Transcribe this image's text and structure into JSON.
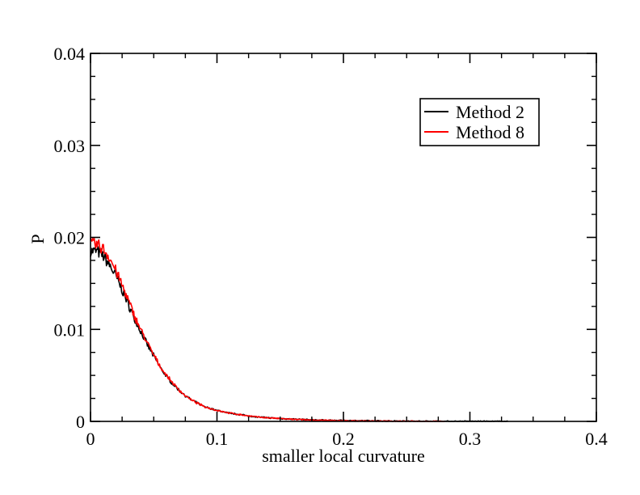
{
  "chart_data": {
    "type": "line",
    "title": "",
    "xlabel": "smaller local curvature",
    "ylabel": "P",
    "xlim": [
      0,
      0.4
    ],
    "ylim": [
      0,
      0.04
    ],
    "xticks": [
      0,
      0.1,
      0.2,
      0.3,
      0.4
    ],
    "xtick_labels": [
      "0",
      "0.1",
      "0.2",
      "0.3",
      "0.4"
    ],
    "yticks": [
      0,
      0.01,
      0.02,
      0.03,
      0.04
    ],
    "ytick_labels": [
      "0",
      "0.01",
      "0.02",
      "0.03",
      "0.04"
    ],
    "grid": false,
    "legend_position": "top-right",
    "series": [
      {
        "name": "Method 2",
        "color": "#000000",
        "x": [
          0,
          0.005,
          0.01,
          0.015,
          0.02,
          0.025,
          0.03,
          0.035,
          0.04,
          0.045,
          0.05,
          0.055,
          0.06,
          0.065,
          0.07,
          0.075,
          0.08,
          0.09,
          0.1,
          0.11,
          0.12,
          0.13,
          0.14,
          0.15,
          0.16,
          0.18,
          0.2,
          0.22,
          0.24,
          0.26,
          0.28,
          0.3,
          0.32,
          0.33
        ],
        "y": [
          0.0185,
          0.0185,
          0.018,
          0.017,
          0.0158,
          0.0143,
          0.0127,
          0.0111,
          0.0097,
          0.0083,
          0.0071,
          0.0059,
          0.0049,
          0.0041,
          0.0034,
          0.0028,
          0.0023,
          0.0016,
          0.0012,
          0.0009,
          0.0007,
          0.0005,
          0.0004,
          0.0003,
          0.00025,
          0.00015,
          0.0001,
          6e-05,
          4e-05,
          2e-05,
          1e-05,
          5e-06,
          2e-06,
          0
        ]
      },
      {
        "name": "Method 8",
        "color": "#ff0000",
        "x": [
          0,
          0.005,
          0.01,
          0.015,
          0.02,
          0.025,
          0.03,
          0.035,
          0.04,
          0.045,
          0.05,
          0.055,
          0.06,
          0.065,
          0.07,
          0.075,
          0.08,
          0.09,
          0.1,
          0.11,
          0.12,
          0.13,
          0.14,
          0.15,
          0.16,
          0.18,
          0.2,
          0.22,
          0.24,
          0.26,
          0.28
        ],
        "y": [
          0.0193,
          0.0192,
          0.0188,
          0.0178,
          0.0164,
          0.0148,
          0.0131,
          0.0114,
          0.0099,
          0.0085,
          0.0072,
          0.006,
          0.005,
          0.0042,
          0.0034,
          0.0028,
          0.0023,
          0.0016,
          0.0012,
          0.0009,
          0.0007,
          0.0005,
          0.0004,
          0.0003,
          0.00022,
          0.00012,
          7e-05,
          4e-05,
          2e-05,
          1e-05,
          0
        ]
      }
    ]
  }
}
